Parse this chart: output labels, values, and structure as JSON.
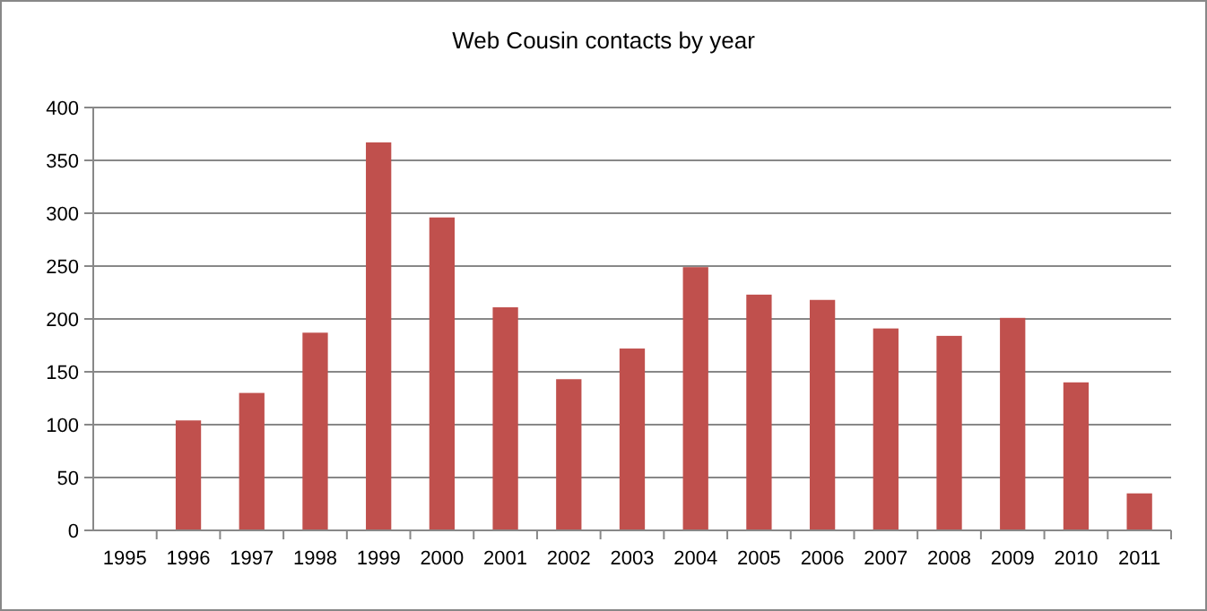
{
  "chart_data": {
    "type": "bar",
    "title": "Web Cousin contacts by year",
    "categories": [
      "1995",
      "1996",
      "1997",
      "1998",
      "1999",
      "2000",
      "2001",
      "2002",
      "2003",
      "2004",
      "2005",
      "2006",
      "2007",
      "2008",
      "2009",
      "2010",
      "2011"
    ],
    "values": [
      0,
      104,
      130,
      187,
      367,
      296,
      211,
      143,
      172,
      249,
      223,
      218,
      191,
      184,
      201,
      140,
      35
    ],
    "color": "#c0504d",
    "ylim": [
      0,
      400
    ],
    "yticks": [
      0,
      50,
      100,
      150,
      200,
      250,
      300,
      350,
      400
    ],
    "grid": "y"
  }
}
